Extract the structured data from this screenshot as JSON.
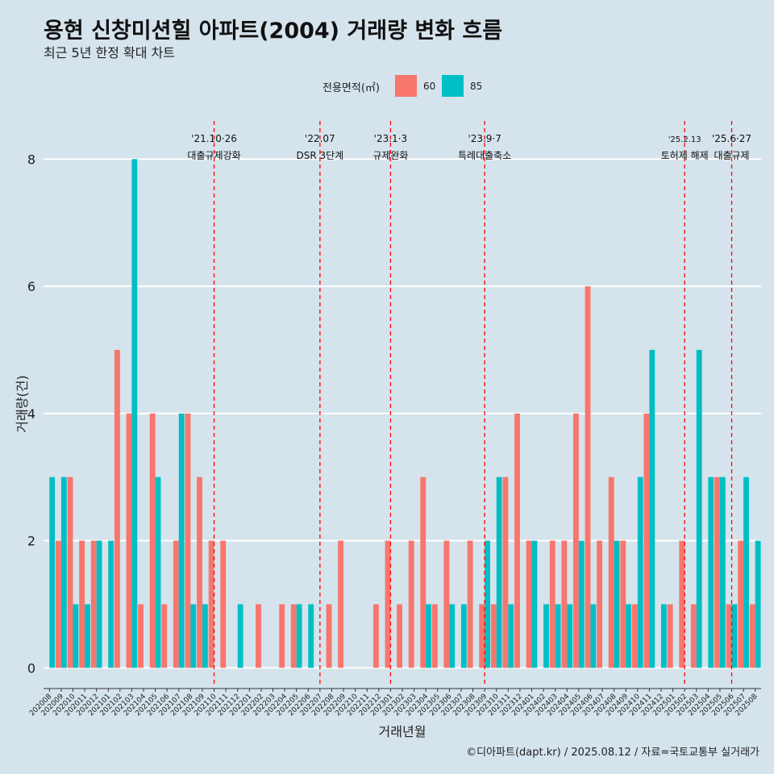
{
  "title": "용현 신창미션힐 아파트(2004) 거래량 변화 흐름",
  "subtitle": "최근 5년 한정 확대 차트",
  "caption": "©디아파트(dapt.kr) / 2025.08.12 / 자료=국토교통부 실거래가",
  "colors": {
    "s60": "#f8766d",
    "s85": "#00bfc4",
    "background": "#d5e3ec",
    "grid": "#ffffff",
    "vline": "#ff0000"
  },
  "chart_data": {
    "type": "bar",
    "xlabel": "거래년월",
    "ylabel": "거래량(건)",
    "ylim": [
      -0.3,
      8.6
    ],
    "yticks": [
      0,
      2,
      4,
      6,
      8
    ],
    "legend": {
      "title": "전용면적(㎡)",
      "position": "top"
    },
    "categories": [
      "202008",
      "202009",
      "202010",
      "202011",
      "202012",
      "202101",
      "202102",
      "202103",
      "202104",
      "202105",
      "202106",
      "202107",
      "202108",
      "202109",
      "202110",
      "202111",
      "202112",
      "202201",
      "202202",
      "202203",
      "202204",
      "202205",
      "202206",
      "202207",
      "202208",
      "202209",
      "202210",
      "202211",
      "202212",
      "202301",
      "202302",
      "202303",
      "202304",
      "202305",
      "202306",
      "202307",
      "202308",
      "202309",
      "202310",
      "202311",
      "202312",
      "202401",
      "202402",
      "202403",
      "202404",
      "202405",
      "202406",
      "202407",
      "202408",
      "202409",
      "202410",
      "202411",
      "202412",
      "202501",
      "202502",
      "202503",
      "202504",
      "202505",
      "202506",
      "202507",
      "202508"
    ],
    "series": [
      {
        "name": "60",
        "values": [
          0,
          2,
          3,
          2,
          2,
          0,
          5,
          4,
          1,
          4,
          1,
          2,
          4,
          3,
          2,
          2,
          0,
          0,
          1,
          0,
          1,
          1,
          0,
          0,
          1,
          2,
          0,
          0,
          1,
          2,
          1,
          2,
          3,
          1,
          2,
          0,
          2,
          1,
          1,
          3,
          4,
          2,
          0,
          2,
          2,
          4,
          6,
          2,
          3,
          2,
          1,
          4,
          0,
          1,
          2,
          1,
          0,
          3,
          1,
          2,
          1
        ]
      },
      {
        "name": "85",
        "values": [
          3,
          3,
          1,
          1,
          2,
          2,
          0,
          8,
          0,
          3,
          0,
          4,
          1,
          1,
          0,
          0,
          1,
          0,
          0,
          0,
          0,
          1,
          1,
          0,
          0,
          0,
          0,
          0,
          0,
          0,
          0,
          0,
          1,
          0,
          1,
          1,
          0,
          2,
          3,
          1,
          0,
          2,
          1,
          1,
          1,
          2,
          1,
          0,
          2,
          1,
          3,
          5,
          1,
          0,
          0,
          5,
          3,
          3,
          1,
          3,
          2
        ]
      }
    ],
    "annotations": [
      {
        "category": "202110",
        "date": "'21.10·26",
        "label": "대출규제강화"
      },
      {
        "category": "202207",
        "date": "'22.07",
        "label": "DSR 3단계"
      },
      {
        "category": "202301",
        "date": "'23.1·3",
        "label": "규제완화"
      },
      {
        "category": "202309",
        "date": "'23.9·7",
        "label": "특례대출축소"
      },
      {
        "category": "202502",
        "date": "'25.2.13",
        "label": "토허제 해제"
      },
      {
        "category": "202506",
        "date": "'25.6·27",
        "label": "대출규제"
      }
    ]
  }
}
